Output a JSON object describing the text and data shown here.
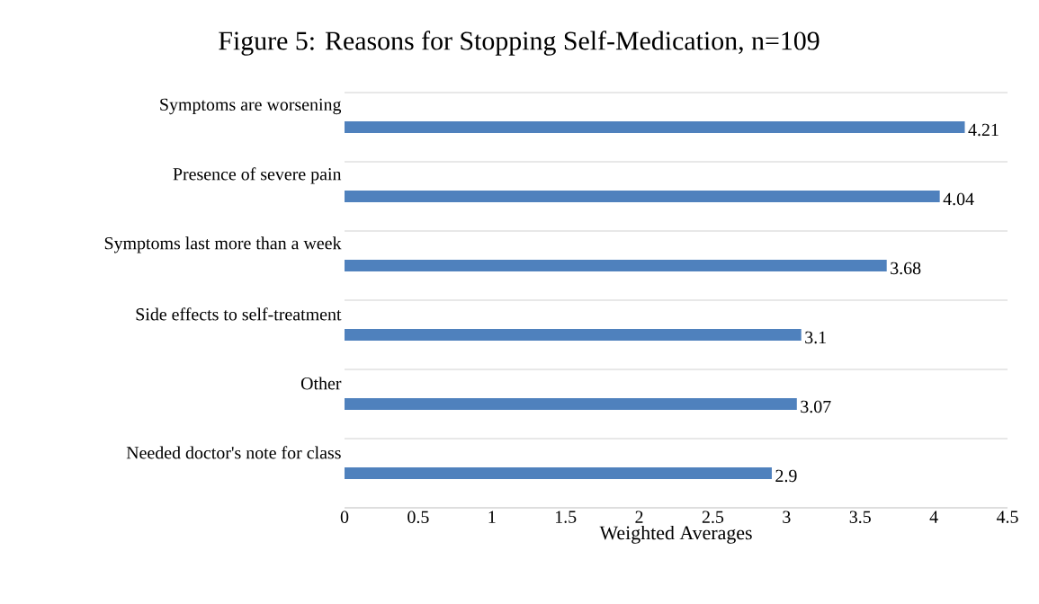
{
  "chart_data": {
    "type": "bar",
    "orientation": "horizontal",
    "title": "Figure 5: Reasons for Stopping Self-Medication, n=109",
    "xlabel": "Weighted Averages",
    "categories": [
      "Symptoms are worsening",
      "Presence of severe pain",
      "Symptoms last more than a week",
      "Side effects to self-treatment",
      "Other",
      "Needed doctor's note for class"
    ],
    "values": [
      4.21,
      4.04,
      3.68,
      3.1,
      3.07,
      2.9
    ],
    "color": "#4f81bd",
    "data_labels": true,
    "grid": "y",
    "xlim": [
      0,
      4.5
    ],
    "xticks": [
      0,
      0.5,
      1,
      1.5,
      2,
      2.5,
      3,
      3.5,
      4,
      4.5
    ]
  }
}
